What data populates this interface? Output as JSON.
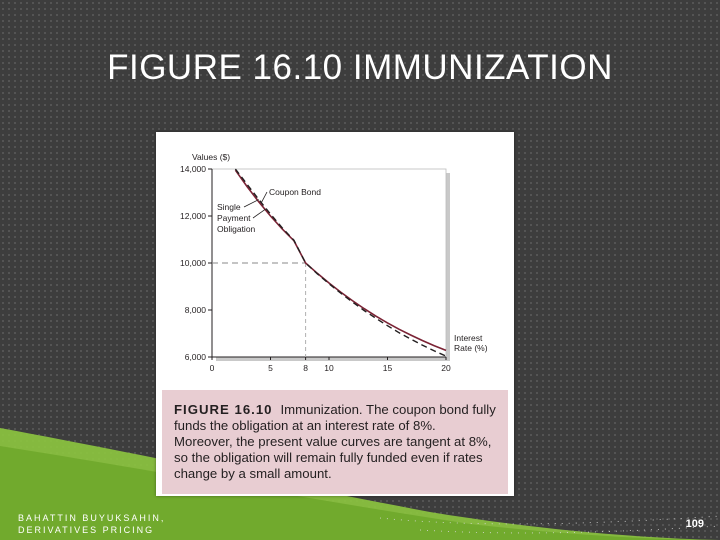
{
  "slide": {
    "title": "FIGURE 16.10 IMMUNIZATION",
    "footer": "BAHATTIN BUYUKSAHIN, DERIVATIVES PRICING",
    "page_number": "109"
  },
  "figure": {
    "caption_label": "FIGURE 16.10",
    "caption_text": "Immunization. The coupon bond fully funds the obligation at an interest rate of 8%. Moreover, the present value curves are tangent at 8%, so the obligation will remain fully funded even if rates change by a small amount."
  },
  "colors": {
    "background": "#3d3d3d",
    "accent_green": "#8dc63f",
    "caption_background": "#e8cdd2",
    "coupon_bond_line": "#7b2335",
    "obligation_line": "#231f20"
  },
  "chart_data": {
    "type": "line",
    "title": "",
    "ylabel": "Values ($)",
    "xlabel": "Interest Rate (%)",
    "xlim": [
      0,
      20
    ],
    "ylim": [
      6000,
      14000
    ],
    "x_ticks": [
      "0",
      "5",
      "8",
      "10",
      "15",
      "20"
    ],
    "x_tick_values": [
      0,
      5,
      8,
      10,
      15,
      20
    ],
    "y_ticks": [
      "6,000",
      "8,000",
      "10,000",
      "12,000",
      "14,000"
    ],
    "y_tick_values": [
      6000,
      8000,
      10000,
      12000,
      14000
    ],
    "grid": false,
    "series": [
      {
        "name": "Coupon Bond",
        "style": "solid",
        "x": [
          2,
          3,
          4,
          5,
          6,
          7,
          8,
          9,
          10,
          11,
          12,
          13,
          14,
          15,
          16,
          17,
          18,
          19,
          20
        ],
        "y": [
          13950,
          13250,
          12600,
          12000,
          11450,
          10950,
          10000,
          9560,
          9150,
          8760,
          8400,
          8060,
          7740,
          7450,
          7180,
          6930,
          6700,
          6480,
          6280
        ]
      },
      {
        "name": "Single Payment Obligation",
        "style": "dashed",
        "x": [
          2,
          3,
          4,
          5,
          6,
          7,
          8,
          9,
          10,
          11,
          12,
          13,
          14,
          15,
          16,
          17,
          18,
          19,
          20
        ],
        "y": [
          14000,
          13350,
          12700,
          12080,
          11500,
          10970,
          10000,
          9540,
          9120,
          8720,
          8340,
          7980,
          7650,
          7330,
          7030,
          6760,
          6500,
          6260,
          6040
        ]
      }
    ],
    "annotations": [
      {
        "text": "Coupon Bond",
        "points_to": "Coupon Bond"
      },
      {
        "text": "Single",
        "points_to": "Single Payment Obligation"
      },
      {
        "text": "Payment",
        "points_to": "Single Payment Obligation"
      },
      {
        "text": "Obligation",
        "points_to": "Single Payment Obligation"
      }
    ],
    "reference_point": {
      "x": 8,
      "y": 10000
    },
    "x_axis_title_lines": [
      "Interest",
      "Rate (%)"
    ]
  }
}
